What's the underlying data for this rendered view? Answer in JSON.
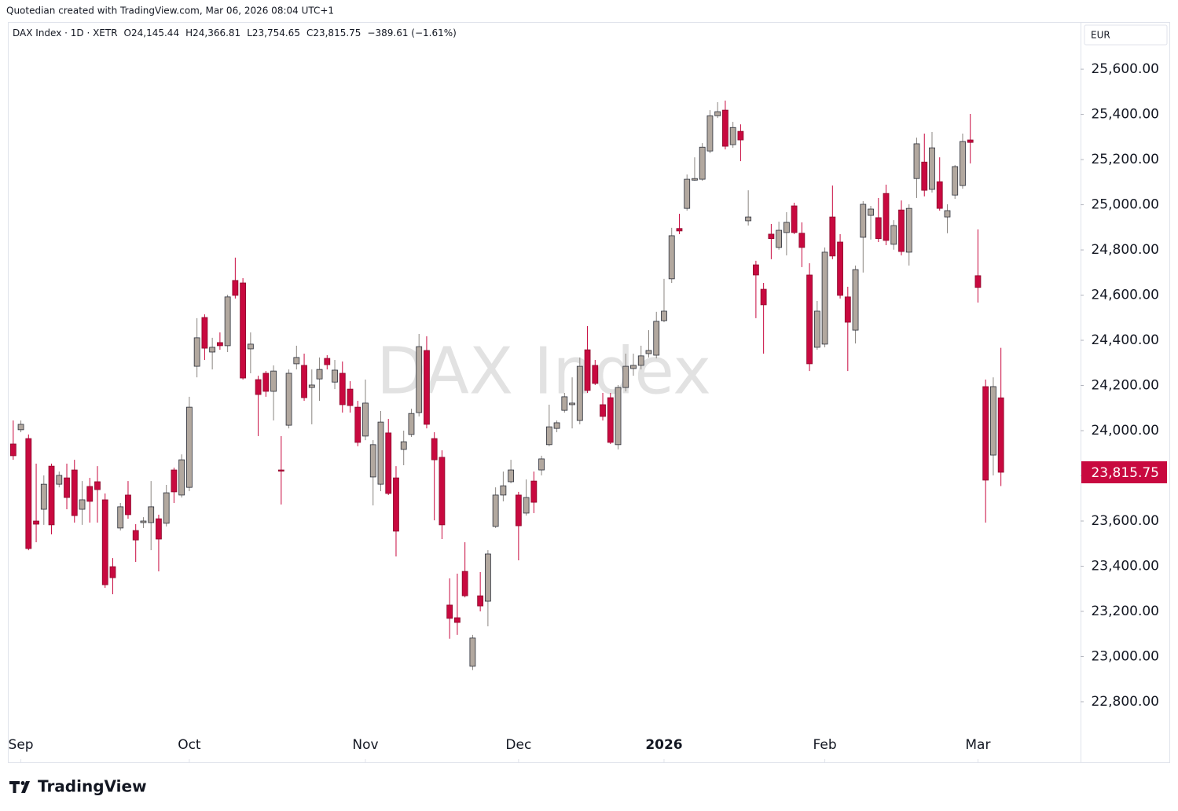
{
  "credit": "Quotedian created with TradingView.com, Mar 06, 2026 08:04 UTC+1",
  "brand": "TradingView",
  "chart_data": {
    "type": "candlestick",
    "watermark": "DAX Index",
    "currency": "EUR",
    "legend": {
      "symbol": "DAX Index · 1D · XETR",
      "fields": [
        {
          "label": "O",
          "value": "24,145.44"
        },
        {
          "label": "H",
          "value": "24,366.81"
        },
        {
          "label": "L",
          "value": "23,754.65"
        },
        {
          "label": "C",
          "value": "23,815.75"
        }
      ],
      "change": "−389.61 (−1.61%)"
    },
    "last_price_label": "23,815.75",
    "up_color": "#b2a89f",
    "down_color": "#c8093f",
    "border_color": "#2a2e39",
    "ylim": [
      22532,
      25809
    ],
    "yticks": [
      {
        "value": 22800,
        "label": "22,800.00"
      },
      {
        "value": 23000,
        "label": "23,000.00"
      },
      {
        "value": 23200,
        "label": "23,200.00"
      },
      {
        "value": 23400,
        "label": "23,400.00"
      },
      {
        "value": 23600,
        "label": "23,600.00"
      },
      {
        "value": 23800,
        "label": "23,800.00"
      },
      {
        "value": 24000,
        "label": "24,000.00"
      },
      {
        "value": 24200,
        "label": "24,200.00"
      },
      {
        "value": 24400,
        "label": "24,400.00"
      },
      {
        "value": 24600,
        "label": "24,600.00"
      },
      {
        "value": 24800,
        "label": "24,800.00"
      },
      {
        "value": 25000,
        "label": "25,000.00"
      },
      {
        "value": 25200,
        "label": "25,200.00"
      },
      {
        "value": 25400,
        "label": "25,400.00"
      },
      {
        "value": 25600,
        "label": "25,600.00"
      }
    ],
    "xlim": [
      -0.7,
      139.4
    ],
    "xticks": [
      {
        "value": 1,
        "label": "Sep"
      },
      {
        "value": 23,
        "label": "Oct"
      },
      {
        "value": 46,
        "label": "Nov"
      },
      {
        "value": 66,
        "label": "Dec"
      },
      {
        "value": 85,
        "label": "2026"
      },
      {
        "value": 106,
        "label": "Feb"
      },
      {
        "value": 126,
        "label": "Mar"
      }
    ],
    "ohlc": [
      [
        23941,
        24045,
        23871,
        23889
      ],
      [
        24004,
        24045,
        23993,
        24028
      ],
      [
        23965,
        23983,
        23471,
        23478
      ],
      [
        23600,
        23854,
        23506,
        23586
      ],
      [
        23652,
        23802,
        23583,
        23763
      ],
      [
        23843,
        23854,
        23541,
        23583
      ],
      [
        23763,
        23819,
        23749,
        23802
      ],
      [
        23791,
        23854,
        23652,
        23704
      ],
      [
        23826,
        23871,
        23593,
        23624
      ],
      [
        23652,
        23777,
        23583,
        23694
      ],
      [
        23753,
        23791,
        23593,
        23687
      ],
      [
        23774,
        23843,
        23593,
        23739
      ],
      [
        23694,
        23722,
        23304,
        23318
      ],
      [
        23398,
        23436,
        23276,
        23349
      ],
      [
        23569,
        23680,
        23558,
        23663
      ],
      [
        23715,
        23777,
        23610,
        23628
      ],
      [
        23558,
        23586,
        23419,
        23516
      ],
      [
        23593,
        23617,
        23569,
        23600
      ],
      [
        23593,
        23777,
        23471,
        23663
      ],
      [
        23610,
        23628,
        23377,
        23520
      ],
      [
        23590,
        23760,
        23576,
        23725
      ],
      [
        23826,
        23836,
        23680,
        23729
      ],
      [
        23715,
        23895,
        23704,
        23871
      ],
      [
        23749,
        24150,
        23732,
        24104
      ],
      [
        24285,
        24498,
        24236,
        24411
      ],
      [
        24501,
        24515,
        24313,
        24365
      ],
      [
        24348,
        24411,
        24271,
        24369
      ],
      [
        24390,
        24435,
        24358,
        24376
      ],
      [
        24376,
        24602,
        24348,
        24592
      ],
      [
        24665,
        24766,
        24585,
        24599
      ],
      [
        24654,
        24675,
        24226,
        24233
      ],
      [
        24362,
        24435,
        24254,
        24383
      ],
      [
        24226,
        24243,
        23976,
        24160
      ],
      [
        24254,
        24264,
        24150,
        24174
      ],
      [
        24174,
        24289,
        24045,
        24264
      ],
      [
        23826,
        23976,
        23673,
        23822
      ],
      [
        24024,
        24271,
        24010,
        24254
      ],
      [
        24296,
        24376,
        24271,
        24324
      ],
      [
        24289,
        24341,
        24132,
        24146
      ],
      [
        24191,
        24271,
        24028,
        24202
      ],
      [
        24229,
        24324,
        24132,
        24271
      ],
      [
        24320,
        24334,
        24271,
        24292
      ],
      [
        24215,
        24313,
        24184,
        24268
      ],
      [
        24254,
        24306,
        24080,
        24115
      ],
      [
        24184,
        24219,
        24080,
        24111
      ],
      [
        24104,
        24132,
        23931,
        23948
      ],
      [
        23976,
        24226,
        23958,
        24122
      ],
      [
        23795,
        23958,
        23669,
        23938
      ],
      [
        23763,
        24087,
        23732,
        24038
      ],
      [
        23990,
        24052,
        23715,
        23722
      ],
      [
        23791,
        23843,
        23443,
        23555
      ],
      [
        23917,
        24000,
        23847,
        23951
      ],
      [
        23983,
        24097,
        23972,
        24076
      ],
      [
        24080,
        24428,
        24063,
        24372
      ],
      [
        24355,
        24418,
        24010,
        24028
      ],
      [
        23965,
        23993,
        23603,
        23871
      ],
      [
        23882,
        23913,
        23520,
        23583
      ],
      [
        23228,
        23346,
        23079,
        23169
      ],
      [
        23172,
        23367,
        23096,
        23151
      ],
      [
        23377,
        23506,
        23262,
        23269
      ],
      [
        22957,
        23096,
        22940,
        23082
      ],
      [
        23269,
        23374,
        23200,
        23224
      ],
      [
        23245,
        23471,
        23134,
        23454
      ],
      [
        23576,
        23749,
        23569,
        23715
      ],
      [
        23715,
        23819,
        23687,
        23756
      ],
      [
        23774,
        23871,
        23767,
        23826
      ],
      [
        23715,
        23729,
        23426,
        23579
      ],
      [
        23635,
        23784,
        23624,
        23704
      ],
      [
        23777,
        23819,
        23635,
        23683
      ],
      [
        23826,
        23889,
        23802,
        23875
      ],
      [
        23938,
        24115,
        23931,
        24017
      ],
      [
        24010,
        24045,
        23993,
        24035
      ],
      [
        24090,
        24167,
        24080,
        24150
      ],
      [
        24115,
        24236,
        24010,
        24122
      ],
      [
        24045,
        24324,
        24028,
        24285
      ],
      [
        24358,
        24463,
        24167,
        24178
      ],
      [
        24289,
        24313,
        24202,
        24209
      ],
      [
        24115,
        24167,
        24045,
        24063
      ],
      [
        24146,
        24167,
        23941,
        23948
      ],
      [
        23938,
        24202,
        23917,
        24191
      ],
      [
        24191,
        24341,
        24174,
        24285
      ],
      [
        24275,
        24341,
        24243,
        24289
      ],
      [
        24289,
        24376,
        24271,
        24331
      ],
      [
        24341,
        24445,
        24324,
        24355
      ],
      [
        24334,
        24526,
        24320,
        24484
      ],
      [
        24487,
        24672,
        24480,
        24529
      ],
      [
        24672,
        24898,
        24654,
        24863
      ],
      [
        24895,
        24960,
        24870,
        24884
      ],
      [
        24984,
        25134,
        24974,
        25113
      ],
      [
        25109,
        25210,
        25106,
        25116
      ],
      [
        25113,
        25273,
        25106,
        25255
      ],
      [
        25238,
        25419,
        25228,
        25394
      ],
      [
        25394,
        25454,
        25384,
        25412
      ],
      [
        25419,
        25461,
        25245,
        25259
      ],
      [
        25266,
        25367,
        25252,
        25342
      ],
      [
        25325,
        25356,
        25193,
        25287
      ],
      [
        24929,
        25064,
        24908,
        24946
      ],
      [
        24734,
        24752,
        24498,
        24689
      ],
      [
        24626,
        24654,
        24341,
        24557
      ],
      [
        24870,
        24915,
        24759,
        24850
      ],
      [
        24811,
        24925,
        24801,
        24887
      ],
      [
        24877,
        24967,
        24776,
        24922
      ],
      [
        24995,
        25009,
        24870,
        24877
      ],
      [
        24874,
        24922,
        24724,
        24811
      ],
      [
        24689,
        24741,
        24264,
        24296
      ],
      [
        24369,
        24574,
        24358,
        24529
      ],
      [
        24383,
        24811,
        24369,
        24790
      ],
      [
        24946,
        25085,
        24759,
        24773
      ],
      [
        24835,
        24870,
        24585,
        24599
      ],
      [
        24592,
        24637,
        24264,
        24480
      ],
      [
        24445,
        24731,
        24386,
        24713
      ],
      [
        24856,
        25016,
        24700,
        25002
      ],
      [
        24953,
        24995,
        24846,
        24981
      ],
      [
        24943,
        25030,
        24835,
        24850
      ],
      [
        25050,
        25089,
        24821,
        24842
      ],
      [
        24825,
        24932,
        24801,
        24908
      ],
      [
        24977,
        25019,
        24776,
        24793
      ],
      [
        24790,
        25002,
        24731,
        24984
      ],
      [
        25116,
        25297,
        25030,
        25270
      ],
      [
        25189,
        25315,
        25037,
        25064
      ],
      [
        25068,
        25322,
        25054,
        25252
      ],
      [
        25102,
        25210,
        24974,
        24984
      ],
      [
        24946,
        25002,
        24874,
        24974
      ],
      [
        25043,
        25176,
        25026,
        25169
      ],
      [
        25085,
        25315,
        25071,
        25280
      ],
      [
        25287,
        25402,
        25183,
        25276
      ],
      [
        24686,
        24891,
        24567,
        24634
      ],
      [
        24195,
        24226,
        23593,
        23781
      ],
      [
        23892,
        24236,
        23802,
        24195
      ],
      [
        24145.44,
        24366.81,
        23754.65,
        23815.75
      ]
    ]
  }
}
